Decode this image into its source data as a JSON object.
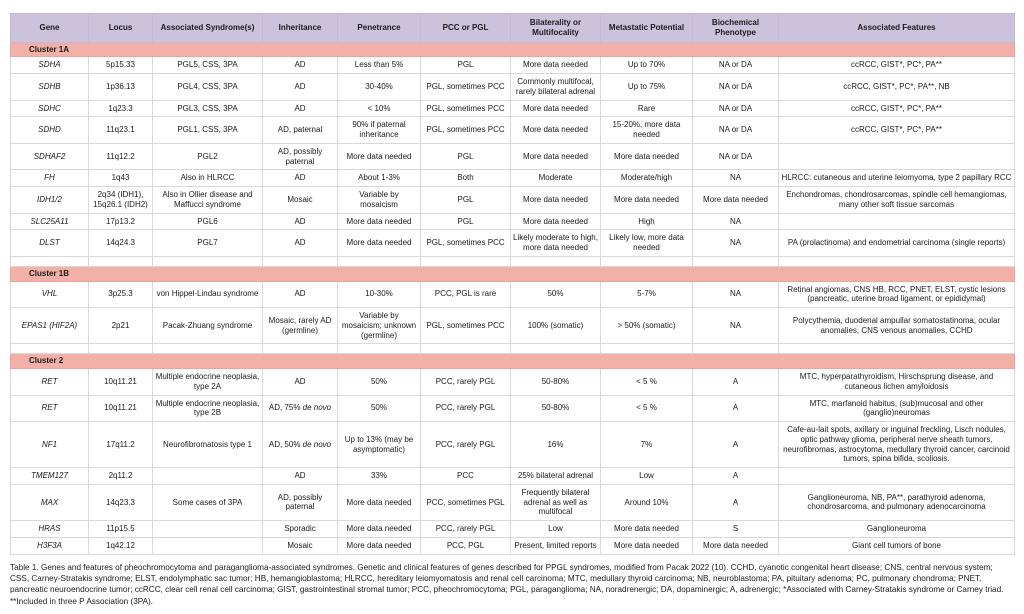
{
  "colors": {
    "header_bg": "#ccc2dc",
    "cluster_bg": "#f2b0a8",
    "border": "#d9d9d9"
  },
  "table": {
    "columns": [
      "Gene",
      "Locus",
      "Associated Syndrome(s)",
      "Inheritance",
      "Penetrance",
      "PCC or PGL",
      "Bilaterality or Multifocality",
      "Metastatic Potential",
      "Biochemical Phenotype",
      "Associated Features"
    ],
    "column_keys": [
      "gene",
      "locus",
      "syndromes",
      "inheritance",
      "penetrance",
      "pcc-or-pgl",
      "bilaterality-multifocality",
      "metastatic-potential",
      "biochemical-phenotype",
      "associated-features"
    ],
    "sections": [
      {
        "label": "Cluster 1A",
        "rows": [
          [
            "SDHA",
            "5p15.33",
            "PGL5, CSS, 3PA",
            "AD",
            "Less than 5%",
            "PGL",
            "More data needed",
            "Up to 70%",
            "NA or DA",
            "ccRCC, GIST*, PC*, PA**"
          ],
          [
            "SDHB",
            "1p36.13",
            "PGL4, CSS, 3PA",
            "AD",
            "30-40%",
            "PGL, sometimes PCC",
            "Commonly multifocal, rarely bilateral adrenal",
            "Up to 75%",
            "NA or DA",
            "ccRCC, GIST*, PC*, PA**, NB"
          ],
          [
            "SDHC",
            "1q23.3",
            "PGL3, CSS, 3PA",
            "AD",
            "< 10%",
            "PGL, sometimes PCC",
            "More data needed",
            "Rare",
            "NA or DA",
            "ccRCC, GIST*, PC*, PA**"
          ],
          [
            "SDHD",
            "11q23.1",
            "PGL1, CSS, 3PA",
            "AD, paternal",
            "90% if paternal inheritance",
            "PGL, sometimes PCC",
            "More data needed",
            "15-20%, more data needed",
            "NA or DA",
            "ccRCC, GIST*, PC*, PA**"
          ],
          [
            "SDHAF2",
            "11q12.2",
            "PGL2",
            "AD, possibly paternal",
            "More data needed",
            "PGL",
            "More data needed",
            "More data needed",
            "NA or DA",
            ""
          ],
          [
            "FH",
            "1q43",
            "Also in HLRCC",
            "AD",
            "About 1-3%",
            "Both",
            "Moderate",
            "Moderate/high",
            "NA",
            "HLRCC: cutaneous and uterine leiomyoma, type 2 papillary RCC"
          ],
          [
            "IDH1/2",
            "2q34 (IDH1), 15q26.1 (IDH2)",
            "Also in Ollier disease and Maffucci syndrome",
            "Mosaic",
            "Variable by mosaicism",
            "PGL",
            "More data needed",
            "More data needed",
            "More data needed",
            "Enchondromas, chondrosarcomas, spindle cell hemangiomas, many other soft tissue sarcomas"
          ],
          [
            "SLC25A11",
            "17p13.2",
            "PGL6",
            "AD",
            "More data needed",
            "PGL",
            "More data needed",
            "High",
            "NA",
            ""
          ],
          [
            "DLST",
            "14q24.3",
            "PGL7",
            "AD",
            "More data needed",
            "PGL, sometimes PCC",
            "Likely moderate to high, more data needed",
            "Likely low, more data needed",
            "NA",
            "PA (prolactinoma) and endometrial carcinoma (single reports)"
          ]
        ]
      },
      {
        "label": "Cluster 1B",
        "rows": [
          [
            "VHL",
            "3p25.3",
            "von Hippel-Lindau syndrome",
            "AD",
            "10-30%",
            "PCC, PGL is rare",
            "50%",
            "5-7%",
            "NA",
            "Retinal angiomas, CNS HB, RCC, PNET, ELST, cystic lesions (pancreatic, uterine broad ligament, or epididymal)"
          ],
          [
            "EPAS1 (HIF2A)",
            "2p21",
            "Pacak-Zhuang syndrome",
            "Mosaic, rarely AD (germline)",
            "Variable by mosaicism; unknown (germline)",
            "PGL, sometimes PCC",
            "100% (somatic)",
            "> 50% (somatic)",
            "NA",
            "Polycythemia, duodenal ampullar somatostatinoma, ocular anomalies, CNS venous anomalies, CCHD"
          ]
        ]
      },
      {
        "label": "Cluster 2",
        "rows": [
          [
            "RET",
            "10q11.21",
            "Multiple endocrine neoplasia, type 2A",
            "AD",
            "50%",
            "PCC, rarely PGL",
            "50-80%",
            "< 5 %",
            "A",
            "MTC, hyperparathyroidism, Hirschsprung disease, and cutaneous lichen amyloidosis"
          ],
          [
            "RET",
            "10q11.21",
            "Multiple endocrine neoplasia, type 2B",
            "AD, 75% de novo",
            "50%",
            "PCC, rarely PGL",
            "50-80%",
            "< 5 %",
            "A",
            "MTC, marfanoid habitus, (sub)mucosal and other (ganglio)neuromas"
          ],
          [
            "NF1",
            "17q11.2",
            "Neurofibromatosis type 1",
            "AD, 50% de novo",
            "Up to 13% (may be asymptomatic)",
            "PCC, rarely PGL",
            "16%",
            "7%",
            "A",
            "Cafe-au-lait spots, axillary or inguinal freckling, Lisch nodules, optic pathway glioma, peripheral nerve sheath tumors, neurofibromas, astrocytoma, medullary thyroid cancer, carcinoid tumors, spina bifida, scoliosis."
          ],
          [
            "TMEM127",
            "2q11.2",
            "",
            "AD",
            "33%",
            "PCC",
            "25% bilateral adrenal",
            "Low",
            "A",
            ""
          ],
          [
            "MAX",
            "14q23.3",
            "Some cases of 3PA",
            "AD, possibly paternal",
            "More data needed",
            "PCC, sometimes PGL",
            "Frequently bilateral adrenal as well as multifocal",
            "Around 10%",
            "A",
            "Ganglioneuroma, NB, PA**, parathyroid adenoma, chondrosarcoma, and pulmonary adenocarcinoma"
          ],
          [
            "HRAS",
            "11p15.5",
            "",
            "Sporadic",
            "More data needed",
            "PCC, rarely PGL",
            "Low",
            "More data needed",
            "S",
            "Ganglioneuroma"
          ],
          [
            "H3F3A",
            "1q42.12",
            "",
            "Mosaic",
            "More data needed",
            "PCC, PGL",
            "Present, limited reports",
            "More data needed",
            "More data needed",
            "Giant cell tumors of bone"
          ]
        ]
      }
    ]
  },
  "caption": "Table 1. Genes and features of pheochromocytoma and paraganglioma-associated syndromes. Genetic and clinical features of genes described for PPGL syndromes, modified from Pacak 2022 (10). CCHD, cyanotic congenital heart disease; CNS, central nervous system; CSS, Carney-Stratakis syndrome; ELST, endolymphatic sac tumor; HB, hemangioblastoma; HLRCC, hereditary leiomyomatosis and renal cell carcinoma; MTC, medullary thyroid carcinoma; NB, neuroblastoma; PA, pituitary adenoma; PC, pulmonary chondroma; PNET, pancreatic neuroendocrine tumor; ccRCC, clear cell renal cell carcinoma; GIST, gastrointestinal stromal tumor; PCC, pheochromocytoma; PGL, paraganglioma; NA, noradrenergic; DA, dopaminergic; A, adrenergic; *Associated with Carney-Stratakis syndrome or Carney triad. **Included in three P Association (3PA)."
}
